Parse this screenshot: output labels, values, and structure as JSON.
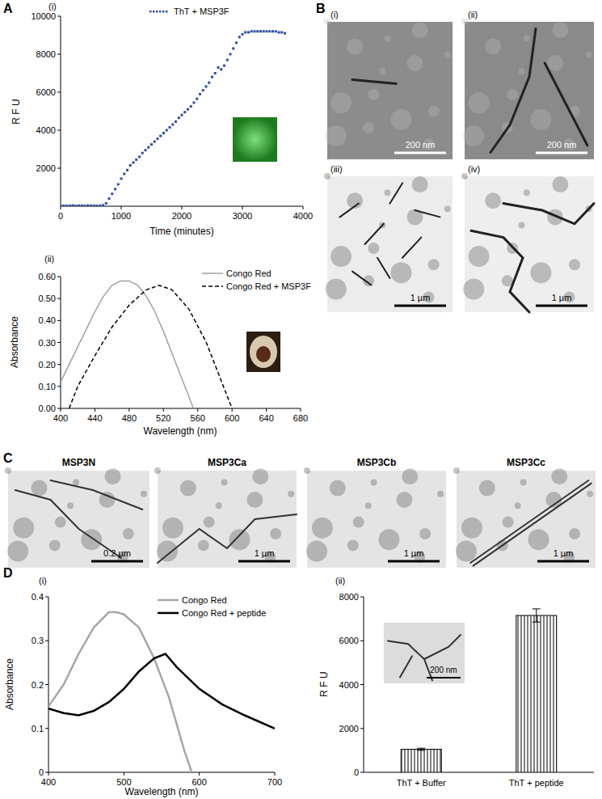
{
  "figure": {
    "panel_labels": [
      "A",
      "B",
      "C",
      "D"
    ],
    "micrographs_B": [
      {
        "label": "(i)",
        "scale_bar": "200 nm"
      },
      {
        "label": "(ii)",
        "scale_bar": "200 nm"
      },
      {
        "label": "(iii)",
        "scale_bar": "1 µm"
      },
      {
        "label": "(iv)",
        "scale_bar": "1 µm"
      }
    ],
    "micrographs_C": [
      {
        "label": "MSP3N",
        "scale_bar": "0.2 µm"
      },
      {
        "label": "MSP3Ca",
        "scale_bar": "1 µm"
      },
      {
        "label": "MSP3Cb",
        "scale_bar": "1 µm"
      },
      {
        "label": "MSP3Cc",
        "scale_bar": "1 µm"
      }
    ]
  },
  "chart_data": [
    {
      "type": "scatter",
      "title": "(i)",
      "xlabel": "Time (minutes)",
      "ylabel": "R F U",
      "x": [
        0,
        50,
        100,
        150,
        200,
        250,
        300,
        350,
        400,
        450,
        500,
        550,
        600,
        650,
        700,
        750,
        800,
        850,
        900,
        950,
        1000,
        1050,
        1100,
        1150,
        1200,
        1250,
        1300,
        1350,
        1400,
        1450,
        1500,
        1550,
        1600,
        1650,
        1700,
        1750,
        1800,
        1850,
        1900,
        1950,
        2000,
        2050,
        2100,
        2150,
        2200,
        2250,
        2300,
        2350,
        2400,
        2450,
        2500,
        2550,
        2600,
        2650,
        2700,
        2750,
        2800,
        2850,
        2900,
        2950,
        3000,
        3050,
        3100,
        3150,
        3200,
        3250,
        3300,
        3350,
        3400,
        3450,
        3500,
        3550,
        3600,
        3650,
        3700
      ],
      "series": [
        {
          "name": "ThT + MSP3F",
          "color": "#2f4f9f",
          "marker": "square",
          "values": [
            20,
            30,
            20,
            30,
            40,
            20,
            30,
            30,
            20,
            40,
            30,
            30,
            20,
            30,
            50,
            150,
            400,
            650,
            900,
            1150,
            1450,
            1700,
            1900,
            2150,
            2300,
            2450,
            2600,
            2800,
            2950,
            3100,
            3250,
            3400,
            3550,
            3700,
            3850,
            4000,
            4150,
            4300,
            4450,
            4650,
            4800,
            4950,
            5100,
            5250,
            5450,
            5650,
            5900,
            6100,
            6300,
            6500,
            6800,
            7000,
            7300,
            7200,
            7400,
            7700,
            8000,
            8300,
            8600,
            8900,
            9050,
            9150,
            9150,
            9200,
            9200,
            9200,
            9200,
            9200,
            9200,
            9200,
            9200,
            9200,
            9150,
            9150,
            9100
          ]
        }
      ],
      "xlim": [
        0,
        4000
      ],
      "xticks": [
        0,
        1000,
        2000,
        3000,
        4000
      ],
      "ylim": [
        0,
        10000
      ],
      "yticks": [
        2000,
        4000,
        6000,
        8000,
        10000
      ],
      "legend": "top"
    },
    {
      "type": "line",
      "title": "(ii)",
      "xlabel": "Wavelength (nm)",
      "ylabel": "Absorbance",
      "series": [
        {
          "name": "Congo Red",
          "color": "#a0a0a0",
          "line_style": "solid",
          "x": [
            400,
            410,
            420,
            430,
            440,
            450,
            460,
            470,
            480,
            490,
            500,
            510,
            520,
            530,
            540,
            550,
            555
          ],
          "values": [
            0.12,
            0.2,
            0.28,
            0.36,
            0.44,
            0.51,
            0.56,
            0.58,
            0.58,
            0.56,
            0.51,
            0.44,
            0.35,
            0.25,
            0.15,
            0.05,
            0
          ]
        },
        {
          "name": "Congo Red + MSP3F",
          "color": "#000000",
          "line_style": "dashed",
          "x": [
            410,
            420,
            440,
            460,
            480,
            500,
            515,
            530,
            550,
            570,
            585,
            600
          ],
          "values": [
            0,
            0.1,
            0.24,
            0.37,
            0.47,
            0.54,
            0.56,
            0.54,
            0.45,
            0.3,
            0.15,
            0
          ]
        }
      ],
      "xlim": [
        400,
        680
      ],
      "xticks": [
        400,
        440,
        480,
        520,
        560,
        600,
        640,
        680
      ],
      "ylim": [
        0,
        0.6
      ],
      "yticks": [
        {
          "value": 0,
          "label": "0.00"
        },
        {
          "value": 0.1,
          "label": "0.10"
        },
        {
          "value": 0.2,
          "label": "0.20"
        },
        {
          "value": 0.3,
          "label": "0.30"
        },
        {
          "value": 0.4,
          "label": "0.40"
        },
        {
          "value": 0.5,
          "label": "0.50"
        },
        {
          "value": 0.6,
          "label": "0.60"
        }
      ],
      "legend": "top"
    },
    {
      "type": "line",
      "title": "(i)",
      "xlabel": "Wavelength (nm)",
      "ylabel": "Absorbance",
      "series": [
        {
          "name": "Congo Red",
          "color": "#a6a6a6",
          "line_style": "solid",
          "x": [
            400,
            420,
            440,
            460,
            480,
            490,
            500,
            520,
            540,
            560,
            580,
            590
          ],
          "values": [
            0.15,
            0.2,
            0.27,
            0.33,
            0.365,
            0.365,
            0.36,
            0.33,
            0.26,
            0.17,
            0.05,
            0
          ]
        },
        {
          "name": "Congo Red + peptide",
          "color": "#000000",
          "line_style": "solid",
          "x": [
            400,
            420,
            440,
            460,
            480,
            500,
            520,
            540,
            555,
            570,
            600,
            630,
            660,
            700
          ],
          "values": [
            0.145,
            0.135,
            0.13,
            0.14,
            0.16,
            0.19,
            0.23,
            0.26,
            0.27,
            0.24,
            0.19,
            0.155,
            0.13,
            0.1
          ]
        }
      ],
      "xlim": [
        400,
        700
      ],
      "xticks": [
        400,
        500,
        600,
        700
      ],
      "ylim": [
        0,
        0.4
      ],
      "yticks": [
        0,
        0.1,
        0.2,
        0.3,
        0.4
      ],
      "legend": "top"
    },
    {
      "type": "bar",
      "title": "(ii)",
      "ylabel": "R F U",
      "categories": [
        "ThT + Buffer",
        "ThT + peptide"
      ],
      "values": [
        1050,
        7150
      ],
      "errors": [
        50,
        300
      ],
      "color": "#000000",
      "ylim": [
        0,
        8000
      ],
      "yticks": [
        0,
        2000,
        4000,
        6000,
        8000
      ],
      "annotations": [
        "200 nm"
      ]
    }
  ]
}
